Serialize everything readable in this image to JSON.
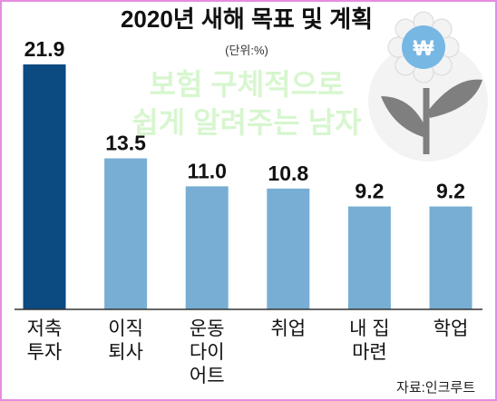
{
  "chart_data": {
    "type": "bar",
    "title": "2020년 새해 목표 및 계획",
    "unit_label": "(단위:%)",
    "categories": [
      [
        "저축",
        "투자"
      ],
      [
        "이직",
        "퇴사"
      ],
      [
        "운동",
        "다이",
        "어트"
      ],
      [
        "취업"
      ],
      [
        "내 집",
        "마련"
      ],
      [
        "학업"
      ]
    ],
    "values": [
      21.9,
      13.5,
      11.0,
      10.8,
      9.2,
      9.2
    ],
    "value_labels": [
      "21.9",
      "13.5",
      "11.0",
      "10.8",
      "9.2",
      "9.2"
    ],
    "colors": {
      "highlight": "#0c4a82",
      "bar": "#78aed3",
      "frame": "#e58ce0",
      "baseline": "#333333"
    },
    "ylim": [
      0,
      21.9
    ],
    "source": "자료:인크루트"
  },
  "watermark": {
    "lines": [
      "보험 구체적으로",
      "쉽게 알려주는 남자"
    ],
    "logo_icon": "won-flower-icon"
  }
}
